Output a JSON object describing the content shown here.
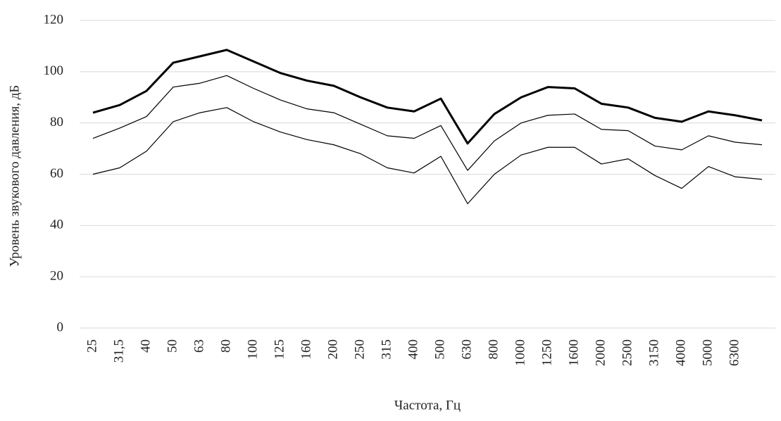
{
  "chart_data": {
    "type": "line",
    "y_label": "Уровень звукового давления, дБ",
    "x_label": "Частота, Гц",
    "categories": [
      "25",
      "31,5",
      "40",
      "50",
      "63",
      "80",
      "100",
      "125",
      "160",
      "200",
      "250",
      "315",
      "400",
      "500",
      "630",
      "800",
      "1000",
      "1250",
      "1600",
      "2000",
      "2500",
      "3150",
      "4000",
      "5000",
      "6300",
      null
    ],
    "series": [
      {
        "color": "#000000",
        "width": 3,
        "values": [
          84,
          87,
          92.5,
          103.5,
          106,
          108.5,
          104,
          99.5,
          96.5,
          94.5,
          90,
          86,
          84.5,
          89.5,
          72,
          83.5,
          90,
          94,
          93.5,
          87.5,
          86,
          82,
          80.5,
          84.5,
          83,
          81
        ]
      },
      {
        "color": "#000000",
        "width": 1.2,
        "values": [
          74,
          78,
          82.5,
          94,
          95.5,
          98.5,
          93.5,
          89,
          85.5,
          84,
          79.5,
          75,
          74,
          79,
          61.5,
          73,
          80,
          83,
          83.5,
          77.5,
          77,
          71,
          69.5,
          75,
          72.5,
          71.5
        ]
      },
      {
        "color": "#000000",
        "width": 1.2,
        "values": [
          60,
          62.5,
          69,
          80.5,
          84,
          86,
          80.5,
          76.5,
          73.5,
          71.5,
          68,
          62.5,
          60.5,
          67,
          48.5,
          60,
          67.5,
          70.5,
          70.5,
          64,
          66,
          59.5,
          54.5,
          63,
          59,
          58
        ]
      }
    ],
    "ylim": [
      0,
      120
    ],
    "yticks": [
      0,
      20,
      40,
      60,
      80,
      100,
      120
    ],
    "grid": true
  }
}
